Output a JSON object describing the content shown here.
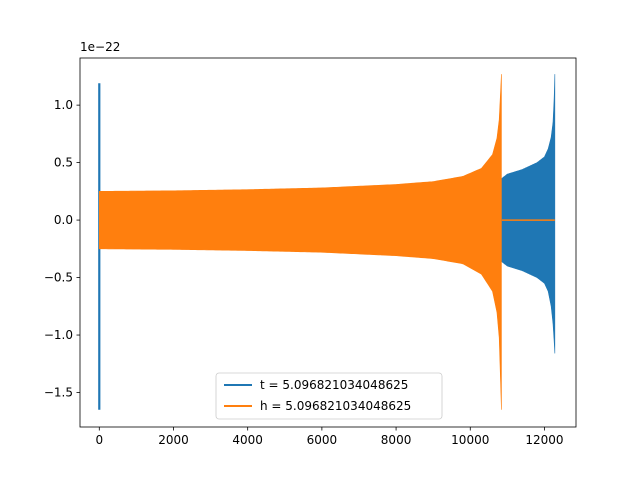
{
  "chart_data": {
    "type": "line",
    "title": "",
    "xlabel": "",
    "ylabel": "",
    "offset_label": "1e−22",
    "xlim": [
      -520,
      12850
    ],
    "ylim": [
      -1.8,
      1.41
    ],
    "x_ticks": [
      0,
      2000,
      4000,
      6000,
      8000,
      10000,
      12000
    ],
    "x_tick_labels": [
      "0",
      "2000",
      "4000",
      "6000",
      "8000",
      "10000",
      "12000"
    ],
    "y_ticks": [
      1.0,
      0.5,
      0.0,
      -0.5,
      -1.0,
      -1.5
    ],
    "y_tick_labels": [
      "1.0",
      "0.5",
      "0.0",
      "−0.5",
      "−1.0",
      "−1.5"
    ],
    "grid": false,
    "legend_position": "lower center",
    "series": [
      {
        "name": "t = 5.096821034048625",
        "color": "#1f77b4",
        "spike": {
          "x": 0,
          "min": -1.65,
          "max": 1.19
        },
        "upper_envelope": [
          [
            10800,
            0.35
          ],
          [
            11000,
            0.4
          ],
          [
            11400,
            0.44
          ],
          [
            11800,
            0.5
          ],
          [
            12000,
            0.55
          ],
          [
            12100,
            0.62
          ],
          [
            12180,
            0.72
          ],
          [
            12230,
            0.85
          ],
          [
            12260,
            1.05
          ],
          [
            12280,
            1.27
          ]
        ],
        "lower_envelope": [
          [
            10800,
            -0.35
          ],
          [
            11000,
            -0.4
          ],
          [
            11400,
            -0.44
          ],
          [
            11800,
            -0.5
          ],
          [
            12000,
            -0.55
          ],
          [
            12100,
            -0.62
          ],
          [
            12180,
            -0.75
          ],
          [
            12230,
            -0.9
          ],
          [
            12260,
            -1.05
          ],
          [
            12280,
            -1.16
          ]
        ]
      },
      {
        "name": "h = 5.096821034048625",
        "color": "#ff7f0e",
        "tail": {
          "from": 10850,
          "to": 12280,
          "value": 0.0
        },
        "upper_envelope": [
          [
            0,
            0.25
          ],
          [
            2000,
            0.255
          ],
          [
            4000,
            0.265
          ],
          [
            6000,
            0.28
          ],
          [
            8000,
            0.31
          ],
          [
            9000,
            0.335
          ],
          [
            9800,
            0.38
          ],
          [
            10300,
            0.45
          ],
          [
            10600,
            0.57
          ],
          [
            10750,
            0.75
          ],
          [
            10810,
            1.0
          ],
          [
            10840,
            1.27
          ]
        ],
        "lower_envelope": [
          [
            0,
            -0.25
          ],
          [
            2000,
            -0.255
          ],
          [
            4000,
            -0.265
          ],
          [
            6000,
            -0.28
          ],
          [
            8000,
            -0.31
          ],
          [
            9000,
            -0.335
          ],
          [
            9800,
            -0.38
          ],
          [
            10300,
            -0.47
          ],
          [
            10600,
            -0.62
          ],
          [
            10750,
            -0.85
          ],
          [
            10810,
            -1.2
          ],
          [
            10840,
            -1.65
          ]
        ]
      }
    ]
  }
}
